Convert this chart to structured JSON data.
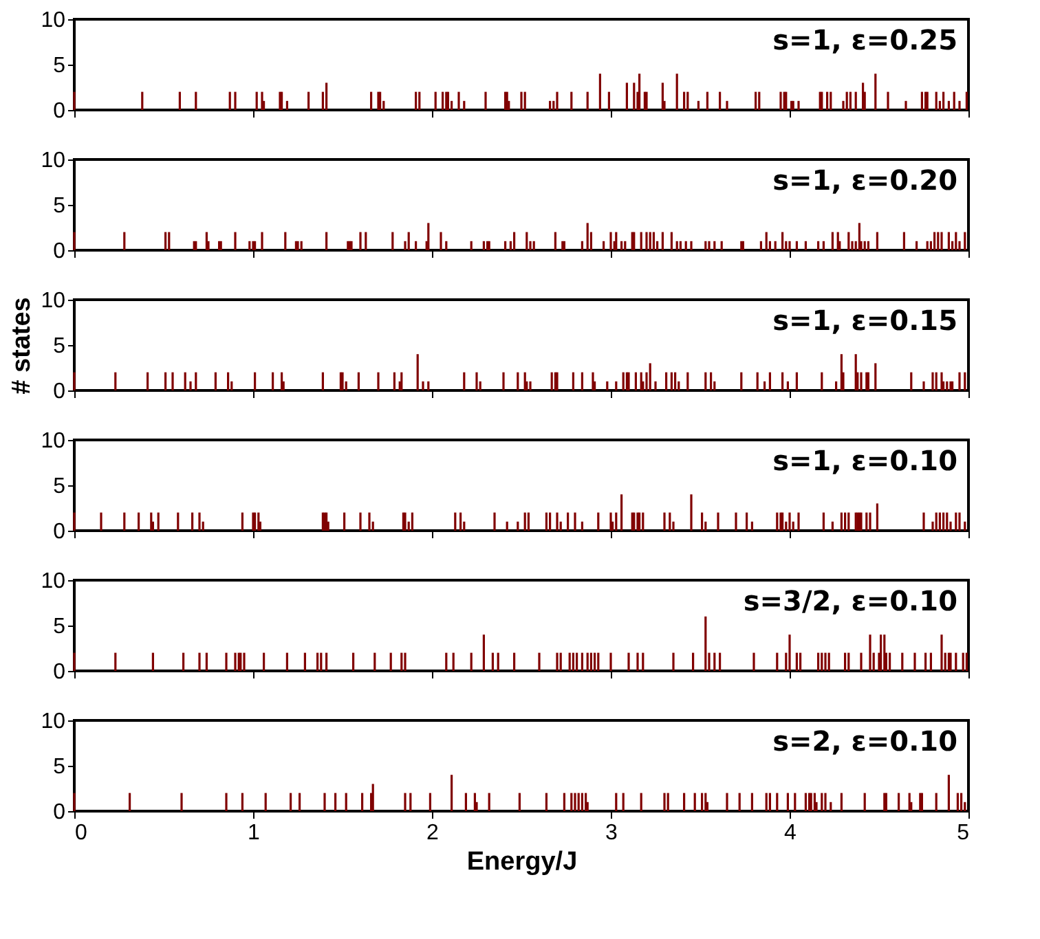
{
  "chart_data": [
    {
      "type": "bar",
      "color": "#800000",
      "xlim": [
        0,
        5
      ],
      "xticks": [
        0,
        1,
        2,
        3,
        4,
        5
      ],
      "ylim": [
        0,
        10
      ],
      "yticks": [
        0,
        5,
        10
      ],
      "tick_labels": "y",
      "annotations": [
        "s=1, ε=0.25"
      ],
      "x": [
        0.0,
        0.38,
        0.59,
        0.68,
        0.87,
        0.9,
        1.02,
        1.05,
        1.06,
        1.15,
        1.16,
        1.19,
        1.31,
        1.39,
        1.41,
        1.66,
        1.7,
        1.71,
        1.73,
        1.91,
        1.93,
        2.02,
        2.06,
        2.08,
        2.09,
        2.11,
        2.15,
        2.18,
        2.3,
        2.41,
        2.42,
        2.43,
        2.5,
        2.52,
        2.66,
        2.68,
        2.7,
        2.78,
        2.87,
        2.94,
        2.99,
        3.09,
        3.13,
        3.15,
        3.16,
        3.19,
        3.2,
        3.29,
        3.3,
        3.37,
        3.41,
        3.43,
        3.49,
        3.54,
        3.61,
        3.65,
        3.81,
        3.83,
        3.95,
        3.97,
        3.98,
        4.01,
        4.02,
        4.05,
        4.17,
        4.18,
        4.21,
        4.23,
        4.3,
        4.32,
        4.34,
        4.37,
        4.41,
        4.42,
        4.48,
        4.55,
        4.65,
        4.74,
        4.76,
        4.77,
        4.82,
        4.84,
        4.86,
        4.89,
        4.92,
        4.95,
        4.99
      ],
      "values": [
        2,
        2,
        2,
        2,
        2,
        2,
        2,
        2,
        1,
        2,
        2,
        1,
        2,
        2,
        3,
        2,
        2,
        2,
        1,
        2,
        2,
        2,
        2,
        2,
        2,
        1,
        2,
        1,
        2,
        2,
        2,
        1,
        2,
        2,
        1,
        1,
        2,
        2,
        2,
        4,
        2,
        3,
        3,
        2,
        4,
        2,
        2,
        3,
        1,
        4,
        2,
        2,
        1,
        2,
        2,
        1,
        2,
        2,
        2,
        2,
        2,
        1,
        1,
        1,
        2,
        2,
        2,
        2,
        1,
        2,
        2,
        2,
        3,
        2,
        4,
        2,
        1,
        2,
        2,
        2,
        2,
        1,
        2,
        1,
        2,
        1,
        2
      ]
    },
    {
      "type": "bar",
      "color": "#800000",
      "xlim": [
        0,
        5
      ],
      "xticks": [
        0,
        1,
        2,
        3,
        4,
        5
      ],
      "ylim": [
        0,
        10
      ],
      "yticks": [
        0,
        5,
        10
      ],
      "tick_labels": "y",
      "annotations": [
        "s=1, ε=0.20"
      ],
      "x": [
        0.0,
        0.28,
        0.51,
        0.53,
        0.67,
        0.68,
        0.74,
        0.75,
        0.81,
        0.82,
        0.9,
        0.98,
        1.0,
        1.01,
        1.05,
        1.18,
        1.24,
        1.25,
        1.27,
        1.41,
        1.53,
        1.54,
        1.55,
        1.6,
        1.63,
        1.78,
        1.85,
        1.87,
        1.91,
        1.97,
        1.98,
        2.05,
        2.08,
        2.22,
        2.29,
        2.31,
        2.32,
        2.41,
        2.44,
        2.46,
        2.53,
        2.55,
        2.57,
        2.69,
        2.73,
        2.74,
        2.84,
        2.87,
        2.89,
        2.96,
        3.0,
        3.02,
        3.03,
        3.06,
        3.08,
        3.12,
        3.13,
        3.17,
        3.2,
        3.22,
        3.24,
        3.26,
        3.29,
        3.34,
        3.37,
        3.39,
        3.42,
        3.45,
        3.53,
        3.55,
        3.58,
        3.62,
        3.73,
        3.74,
        3.84,
        3.87,
        3.89,
        3.92,
        3.96,
        3.98,
        4.0,
        4.04,
        4.09,
        4.16,
        4.19,
        4.24,
        4.27,
        4.28,
        4.33,
        4.35,
        4.37,
        4.39,
        4.4,
        4.42,
        4.44,
        4.49,
        4.64,
        4.71,
        4.77,
        4.79,
        4.81,
        4.83,
        4.85,
        4.89,
        4.91,
        4.93,
        4.95,
        4.98
      ],
      "values": [
        2,
        2,
        2,
        2,
        1,
        1,
        2,
        1,
        1,
        1,
        2,
        1,
        1,
        1,
        2,
        2,
        1,
        1,
        1,
        2,
        1,
        1,
        1,
        2,
        2,
        2,
        1,
        2,
        1,
        1,
        3,
        2,
        1,
        1,
        1,
        1,
        1,
        1,
        1,
        2,
        2,
        1,
        1,
        2,
        1,
        1,
        1,
        3,
        2,
        1,
        2,
        1,
        2,
        1,
        1,
        2,
        2,
        2,
        2,
        2,
        2,
        1,
        2,
        2,
        1,
        1,
        1,
        1,
        1,
        1,
        1,
        1,
        1,
        1,
        1,
        2,
        1,
        1,
        2,
        1,
        1,
        1,
        1,
        1,
        1,
        2,
        2,
        1,
        2,
        1,
        1,
        3,
        1,
        1,
        1,
        2,
        2,
        1,
        1,
        1,
        2,
        2,
        2,
        2,
        1,
        2,
        1,
        2
      ]
    },
    {
      "type": "bar",
      "color": "#800000",
      "xlim": [
        0,
        5
      ],
      "xticks": [
        0,
        1,
        2,
        3,
        4,
        5
      ],
      "ylim": [
        0,
        10
      ],
      "yticks": [
        0,
        5,
        10
      ],
      "tick_labels": "y",
      "ylabel": "# states",
      "annotations": [
        "s=1, ε=0.15"
      ],
      "x": [
        0.0,
        0.23,
        0.41,
        0.51,
        0.55,
        0.62,
        0.65,
        0.68,
        0.79,
        0.86,
        0.88,
        1.01,
        1.11,
        1.16,
        1.17,
        1.39,
        1.49,
        1.5,
        1.52,
        1.59,
        1.7,
        1.79,
        1.82,
        1.83,
        1.92,
        1.95,
        1.98,
        2.18,
        2.25,
        2.27,
        2.4,
        2.48,
        2.52,
        2.53,
        2.55,
        2.67,
        2.69,
        2.7,
        2.79,
        2.84,
        2.9,
        2.91,
        2.98,
        3.03,
        3.07,
        3.09,
        3.1,
        3.14,
        3.17,
        3.18,
        3.2,
        3.22,
        3.25,
        3.31,
        3.34,
        3.36,
        3.38,
        3.43,
        3.53,
        3.56,
        3.58,
        3.73,
        3.82,
        3.86,
        3.89,
        3.96,
        3.99,
        4.04,
        4.18,
        4.26,
        4.29,
        4.3,
        4.37,
        4.38,
        4.4,
        4.43,
        4.44,
        4.48,
        4.68,
        4.75,
        4.8,
        4.82,
        4.85,
        4.86,
        4.88,
        4.9,
        4.91,
        4.95,
        4.98
      ],
      "values": [
        2,
        2,
        2,
        2,
        2,
        2,
        1,
        2,
        2,
        2,
        1,
        2,
        2,
        2,
        1,
        2,
        2,
        2,
        1,
        2,
        2,
        2,
        1,
        2,
        4,
        1,
        1,
        2,
        2,
        1,
        2,
        2,
        2,
        1,
        1,
        2,
        2,
        2,
        2,
        2,
        2,
        1,
        1,
        1,
        2,
        2,
        2,
        2,
        2,
        1,
        2,
        3,
        1,
        2,
        2,
        2,
        1,
        2,
        2,
        2,
        1,
        2,
        2,
        1,
        2,
        2,
        1,
        2,
        2,
        1,
        4,
        2,
        4,
        2,
        2,
        2,
        2,
        3,
        2,
        1,
        2,
        2,
        2,
        1,
        1,
        1,
        1,
        2,
        2
      ]
    },
    {
      "type": "bar",
      "color": "#800000",
      "xlim": [
        0,
        5
      ],
      "xticks": [
        0,
        1,
        2,
        3,
        4,
        5
      ],
      "ylim": [
        0,
        10
      ],
      "yticks": [
        0,
        5,
        10
      ],
      "tick_labels": "y",
      "annotations": [
        "s=1, ε=0.10"
      ],
      "x": [
        0.0,
        0.15,
        0.28,
        0.36,
        0.43,
        0.44,
        0.47,
        0.58,
        0.66,
        0.7,
        0.72,
        0.94,
        1.0,
        1.01,
        1.03,
        1.04,
        1.39,
        1.4,
        1.41,
        1.42,
        1.51,
        1.6,
        1.65,
        1.67,
        1.84,
        1.85,
        1.87,
        1.89,
        2.13,
        2.16,
        2.18,
        2.35,
        2.42,
        2.48,
        2.52,
        2.54,
        2.64,
        2.66,
        2.7,
        2.72,
        2.76,
        2.8,
        2.84,
        2.93,
        3.0,
        3.01,
        3.03,
        3.06,
        3.12,
        3.13,
        3.15,
        3.16,
        3.18,
        3.3,
        3.33,
        3.35,
        3.45,
        3.51,
        3.53,
        3.6,
        3.7,
        3.76,
        3.79,
        3.93,
        3.95,
        3.96,
        3.98,
        4.0,
        4.02,
        4.05,
        4.19,
        4.24,
        4.29,
        4.31,
        4.33,
        4.37,
        4.38,
        4.39,
        4.4,
        4.43,
        4.45,
        4.49,
        4.75,
        4.8,
        4.82,
        4.84,
        4.86,
        4.88,
        4.9,
        4.93,
        4.95,
        4.98
      ],
      "values": [
        2,
        2,
        2,
        2,
        2,
        1,
        2,
        2,
        2,
        2,
        1,
        2,
        2,
        2,
        2,
        1,
        2,
        2,
        2,
        1,
        2,
        2,
        2,
        1,
        2,
        2,
        1,
        2,
        2,
        2,
        1,
        2,
        1,
        1,
        2,
        2,
        2,
        2,
        2,
        1,
        2,
        2,
        1,
        2,
        2,
        1,
        2,
        4,
        2,
        2,
        2,
        2,
        2,
        2,
        2,
        1,
        4,
        2,
        1,
        2,
        2,
        2,
        1,
        2,
        2,
        2,
        1,
        2,
        1,
        2,
        2,
        1,
        2,
        2,
        2,
        2,
        2,
        2,
        2,
        2,
        2,
        3,
        2,
        1,
        2,
        2,
        2,
        2,
        1,
        2,
        2,
        1
      ]
    },
    {
      "type": "bar",
      "color": "#800000",
      "xlim": [
        0,
        5
      ],
      "xticks": [
        0,
        1,
        2,
        3,
        4,
        5
      ],
      "ylim": [
        0,
        10
      ],
      "yticks": [
        0,
        5,
        10
      ],
      "tick_labels": "y",
      "annotations": [
        "s=3/2, ε=0.10"
      ],
      "x": [
        0.0,
        0.23,
        0.44,
        0.61,
        0.7,
        0.74,
        0.85,
        0.9,
        0.92,
        0.93,
        0.95,
        1.06,
        1.19,
        1.29,
        1.36,
        1.38,
        1.41,
        1.56,
        1.68,
        1.77,
        1.83,
        1.85,
        2.08,
        2.12,
        2.22,
        2.29,
        2.34,
        2.37,
        2.46,
        2.6,
        2.7,
        2.72,
        2.77,
        2.79,
        2.81,
        2.84,
        2.87,
        2.89,
        2.91,
        2.93,
        3.0,
        3.1,
        3.15,
        3.18,
        3.35,
        3.46,
        3.53,
        3.55,
        3.58,
        3.61,
        3.8,
        3.93,
        3.98,
        4.0,
        4.04,
        4.06,
        4.16,
        4.18,
        4.2,
        4.22,
        4.31,
        4.33,
        4.4,
        4.45,
        4.47,
        4.5,
        4.51,
        4.53,
        4.54,
        4.56,
        4.63,
        4.7,
        4.76,
        4.79,
        4.85,
        4.87,
        4.89,
        4.9,
        4.93,
        4.97,
        4.99
      ],
      "values": [
        2,
        2,
        2,
        2,
        2,
        2,
        2,
        2,
        2,
        2,
        2,
        2,
        2,
        2,
        2,
        2,
        2,
        2,
        2,
        2,
        2,
        2,
        2,
        2,
        2,
        4,
        2,
        2,
        2,
        2,
        2,
        2,
        2,
        2,
        2,
        2,
        2,
        2,
        2,
        2,
        2,
        2,
        2,
        2,
        2,
        2,
        6,
        2,
        2,
        2,
        2,
        2,
        2,
        4,
        2,
        2,
        2,
        2,
        2,
        2,
        2,
        2,
        2,
        4,
        2,
        2,
        4,
        4,
        2,
        2,
        2,
        2,
        2,
        2,
        4,
        2,
        2,
        2,
        2,
        2,
        2
      ]
    },
    {
      "type": "bar",
      "color": "#800000",
      "xlim": [
        0,
        5
      ],
      "xticks": [
        0,
        1,
        2,
        3,
        4,
        5
      ],
      "ylim": [
        0,
        10
      ],
      "yticks": [
        0,
        5,
        10
      ],
      "xlabel": "Energy/J",
      "annotations": [
        "s=2, ε=0.10"
      ],
      "x": [
        0.0,
        0.31,
        0.6,
        0.85,
        0.94,
        1.07,
        1.21,
        1.26,
        1.4,
        1.46,
        1.52,
        1.61,
        1.66,
        1.67,
        1.85,
        1.88,
        1.99,
        2.11,
        2.19,
        2.24,
        2.25,
        2.32,
        2.49,
        2.64,
        2.74,
        2.78,
        2.8,
        2.82,
        2.84,
        2.86,
        2.87,
        3.03,
        3.07,
        3.17,
        3.3,
        3.32,
        3.41,
        3.47,
        3.51,
        3.53,
        3.54,
        3.65,
        3.72,
        3.79,
        3.87,
        3.89,
        3.93,
        3.99,
        4.03,
        4.09,
        4.11,
        4.12,
        4.14,
        4.15,
        4.18,
        4.2,
        4.23,
        4.29,
        4.42,
        4.53,
        4.54,
        4.61,
        4.67,
        4.68,
        4.73,
        4.74,
        4.82,
        4.89,
        4.94,
        4.96,
        4.98
      ],
      "values": [
        2,
        2,
        2,
        2,
        2,
        2,
        2,
        2,
        2,
        2,
        2,
        2,
        2,
        3,
        2,
        2,
        2,
        4,
        2,
        2,
        1,
        2,
        2,
        2,
        2,
        2,
        2,
        2,
        2,
        2,
        1,
        2,
        2,
        2,
        2,
        2,
        2,
        2,
        2,
        2,
        1,
        2,
        2,
        2,
        2,
        2,
        2,
        2,
        2,
        2,
        2,
        2,
        2,
        1,
        2,
        2,
        1,
        2,
        2,
        2,
        2,
        2,
        2,
        1,
        2,
        2,
        2,
        4,
        2,
        2,
        1
      ]
    }
  ]
}
